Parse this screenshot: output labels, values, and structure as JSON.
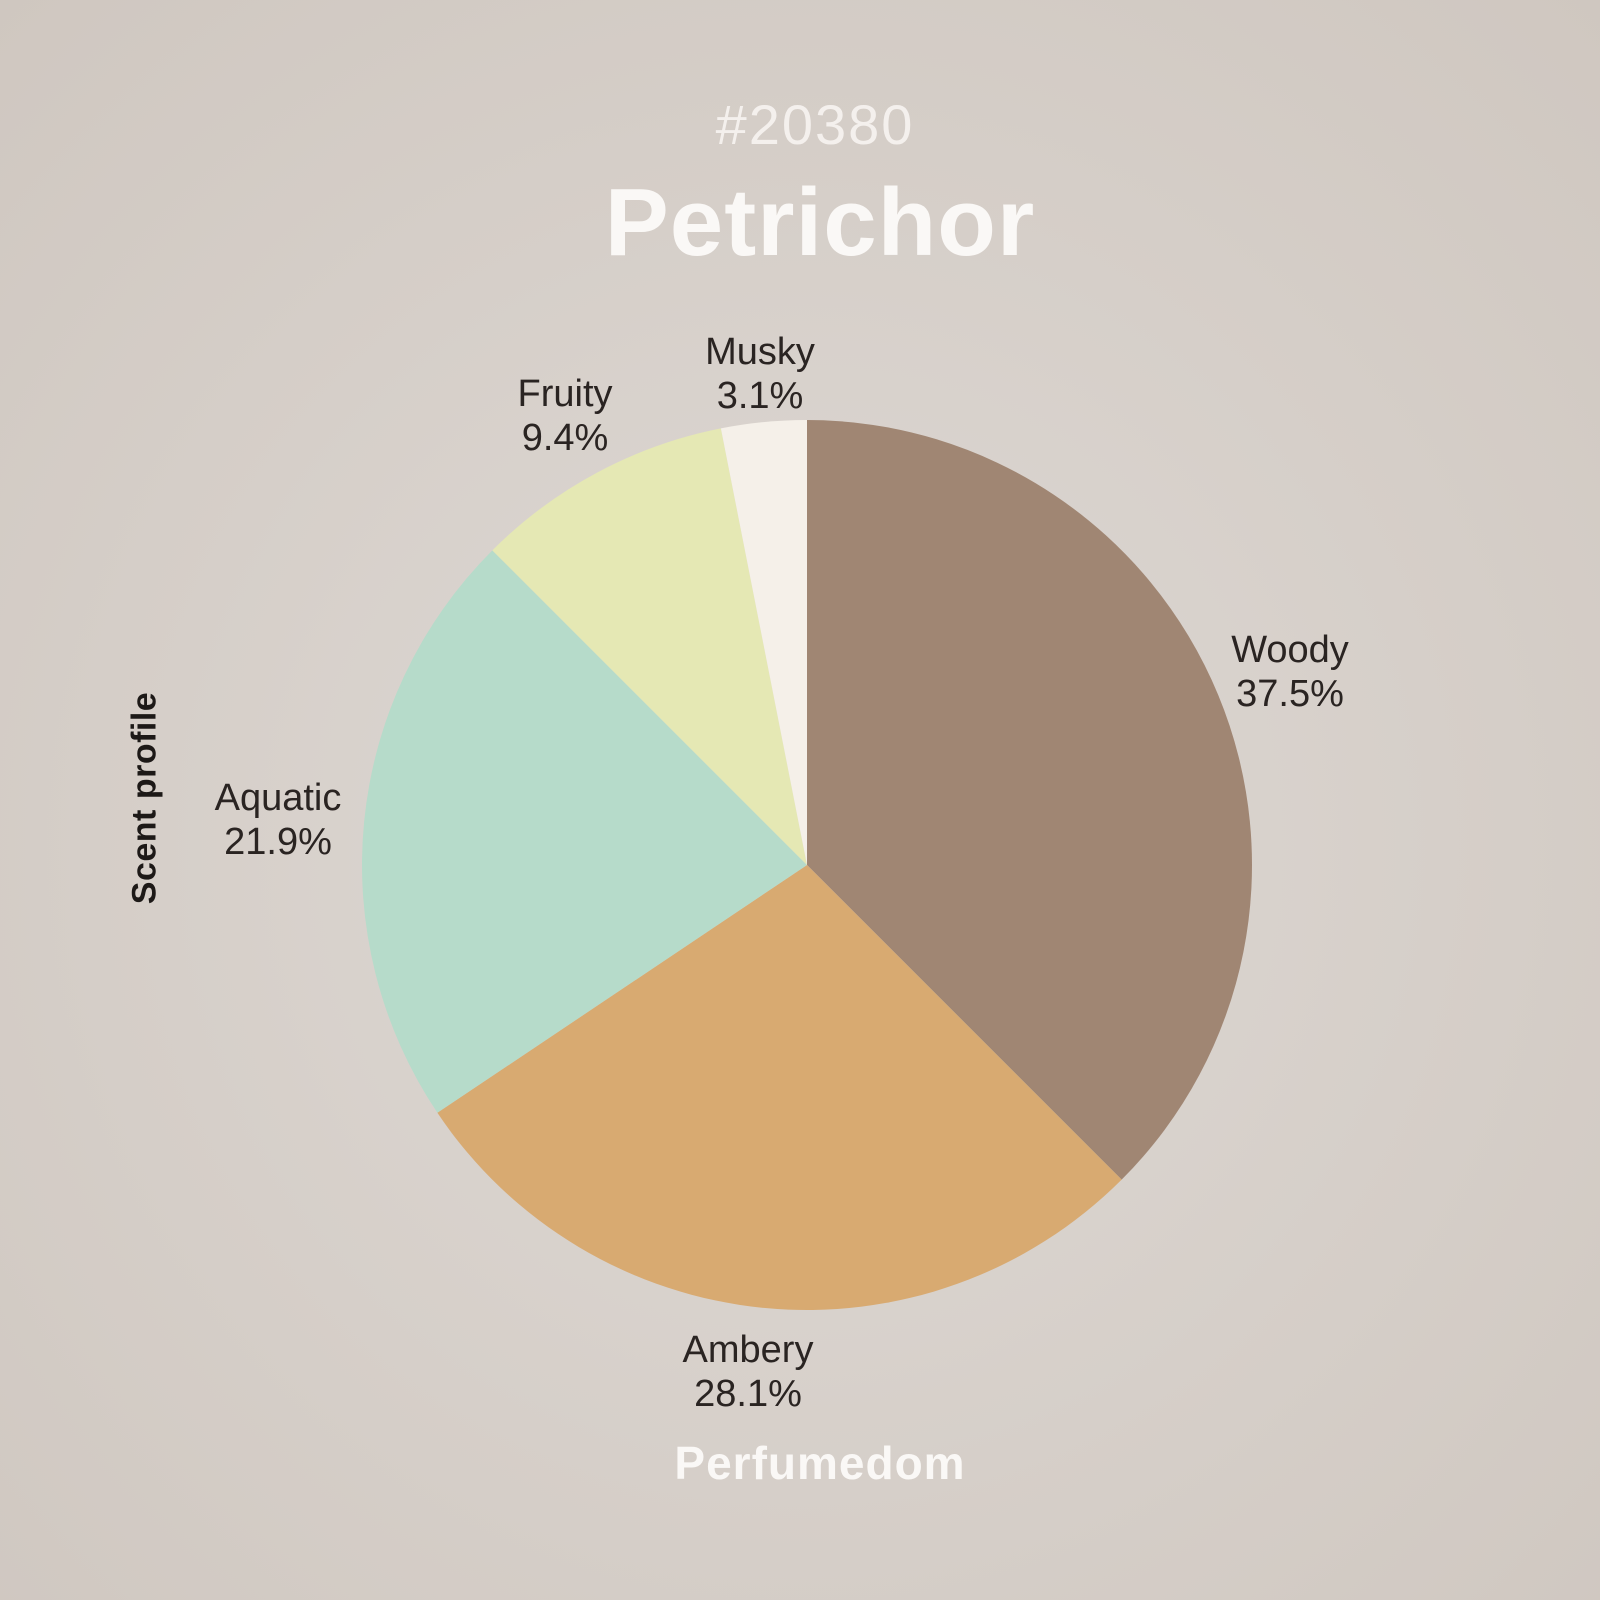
{
  "header": {
    "badge_id": "#20380",
    "title": "Petrichor"
  },
  "side_label": "Scent profile",
  "footer": {
    "brand": "Perfumedom"
  },
  "colors": {
    "background_center": "#ded9d5",
    "background_edge": "#cfc7c0",
    "title_text": "#faf8f6",
    "label_text": "#2a2422"
  },
  "chart_data": {
    "type": "pie",
    "title": "Petrichor",
    "subtitle": "#20380",
    "side_axis_label": "Scent profile",
    "start_angle_deg": 0,
    "direction": "clockwise",
    "legend_position": "around-slices",
    "categories": [
      "Woody",
      "Ambery",
      "Aquatic",
      "Fruity",
      "Musky"
    ],
    "values": [
      37.5,
      28.1,
      21.9,
      9.4,
      3.1
    ],
    "unit": "%",
    "slices": [
      {
        "name": "Woody",
        "value": 37.5,
        "pct_label": "37.5%",
        "color": "#a08673"
      },
      {
        "name": "Ambery",
        "value": 28.1,
        "pct_label": "28.1%",
        "color": "#d8aa71"
      },
      {
        "name": "Aquatic",
        "value": 21.9,
        "pct_label": "21.9%",
        "color": "#b6dbca"
      },
      {
        "name": "Fruity",
        "value": 9.4,
        "pct_label": "9.4%",
        "color": "#e5e8b4"
      },
      {
        "name": "Musky",
        "value": 3.1,
        "pct_label": "3.1%",
        "color": "#f5f0e9"
      }
    ]
  }
}
